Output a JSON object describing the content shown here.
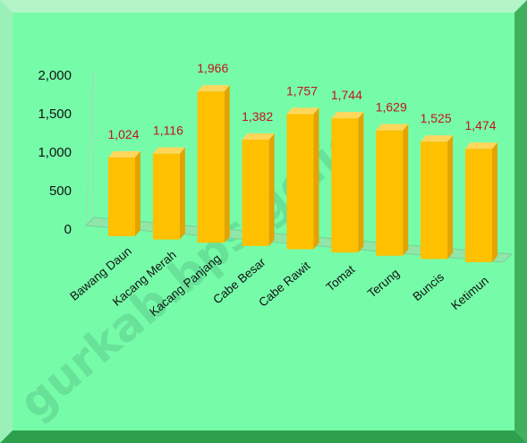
{
  "colors": {
    "panel_fill": "#76fca9",
    "panel_edge_top": "#b4f5c8",
    "panel_edge_bottom": "#2ea04c",
    "floor": "#8fe6a8",
    "bar_face": "#ffc000",
    "bar_side": "#e3a300",
    "bar_top": "#ffd65c",
    "data_label": "#c0161a",
    "axis_text": "#111111",
    "page_background": "#cfe8ff"
  },
  "watermark": "gurkab.bps.go.id",
  "chart_data": {
    "type": "bar",
    "categories": [
      "Bawang Daun",
      "Kacang Merah",
      "Kacang Panjang",
      "Cabe Besar",
      "Cabe Rawit",
      "Tomat",
      "Terung",
      "Buncis",
      "Ketimun"
    ],
    "values": [
      1024,
      1116,
      1966,
      1382,
      1757,
      1744,
      1629,
      1525,
      1474
    ],
    "value_labels": [
      "1,024",
      "1,116",
      "1,966",
      "1,382",
      "1,757",
      "1,744",
      "1,629",
      "1,525",
      "1,474"
    ],
    "yticks": [
      0,
      500,
      1000,
      1500,
      2000
    ],
    "ytick_labels": [
      "0",
      "500",
      "1,000",
      "1,500",
      "2,000"
    ],
    "ylim": [
      0,
      2000
    ],
    "grid": false,
    "legend": "none",
    "title": "",
    "xlabel": "",
    "ylabel": ""
  }
}
